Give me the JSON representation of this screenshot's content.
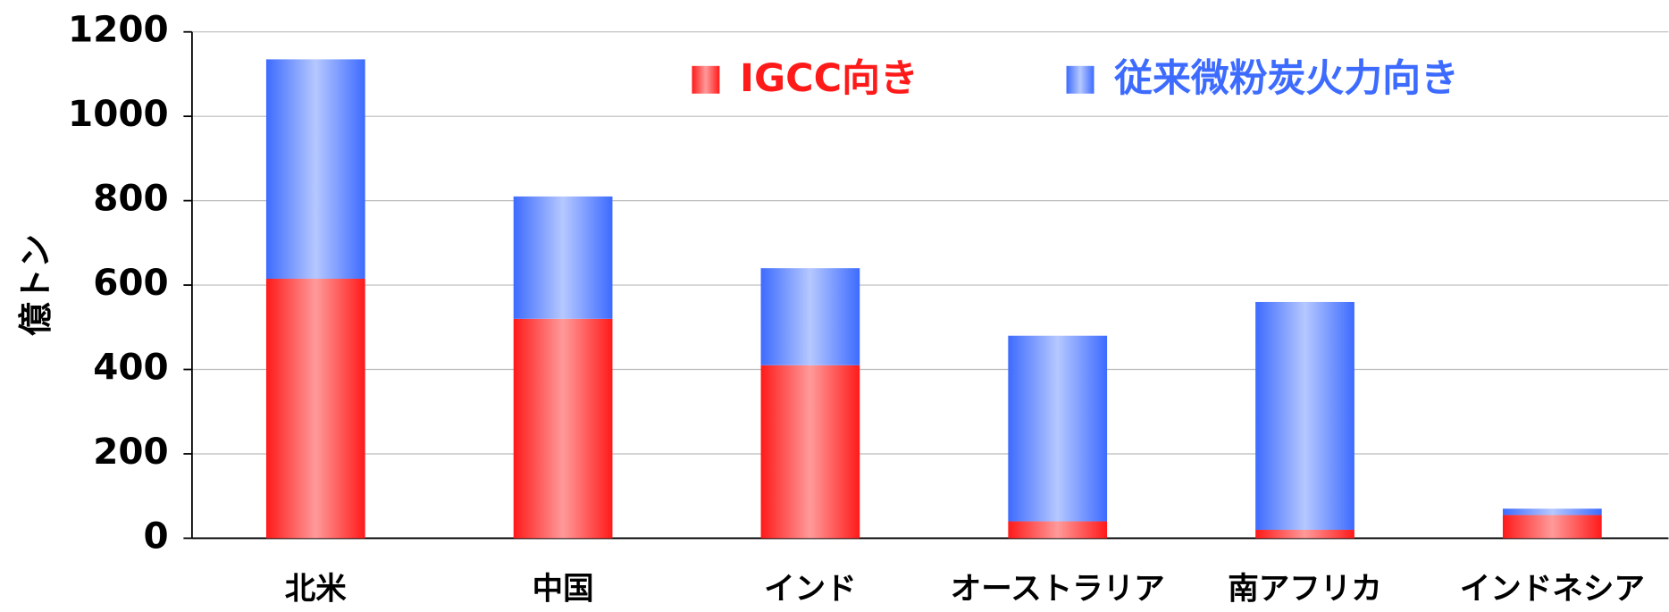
{
  "chart_data": {
    "type": "bar",
    "stacked": true,
    "ylabel": "億トン",
    "categories": [
      "北米",
      "中国",
      "インド",
      "オーストラリア",
      "南アフリカ",
      "インドネシア"
    ],
    "series": [
      {
        "name": "IGCC向き",
        "color": "#ff1a1a",
        "values": [
          615,
          520,
          410,
          40,
          20,
          55
        ]
      },
      {
        "name": "従来微粉炭火力向き",
        "color": "#3d6bff",
        "values": [
          520,
          290,
          230,
          440,
          540,
          15
        ]
      }
    ],
    "ylim": [
      0,
      1200
    ],
    "yticks": [
      0,
      200,
      400,
      600,
      800,
      1000,
      1200
    ],
    "grid": true
  }
}
